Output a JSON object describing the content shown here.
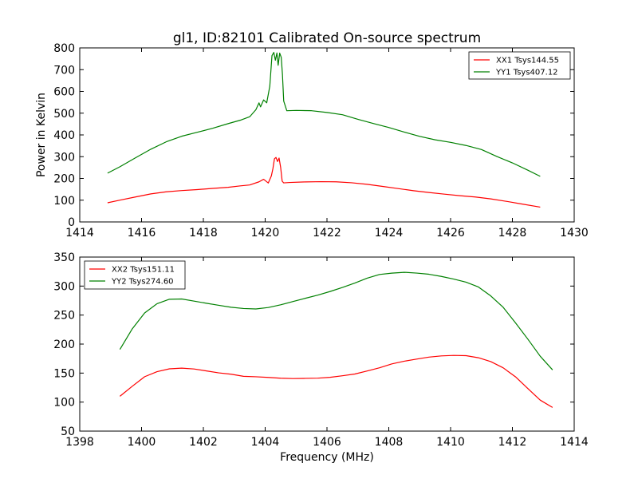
{
  "chart_data": [
    {
      "type": "line",
      "title": "gl1, ID:82101 Calibrated On-source spectrum",
      "xlabel": "",
      "ylabel": "Power in Kelvin",
      "xlim": [
        1414,
        1430
      ],
      "ylim": [
        0,
        800
      ],
      "xticks": [
        1414,
        1416,
        1418,
        1420,
        1422,
        1424,
        1426,
        1428,
        1430
      ],
      "yticks": [
        0,
        100,
        200,
        300,
        400,
        500,
        600,
        700,
        800
      ],
      "grid": false,
      "legend": "top-right",
      "series": [
        {
          "name": "XX1 Tsys144.55",
          "color": "#ff0000",
          "x": [
            1414.9,
            1415.3,
            1415.8,
            1416.3,
            1416.8,
            1417.3,
            1417.8,
            1418.3,
            1418.8,
            1419.2,
            1419.5,
            1419.8,
            1419.95,
            1420.1,
            1420.2,
            1420.25,
            1420.3,
            1420.35,
            1420.4,
            1420.45,
            1420.5,
            1420.55,
            1420.6,
            1420.8,
            1421.3,
            1421.8,
            1422.3,
            1422.8,
            1423.3,
            1423.8,
            1424.3,
            1424.8,
            1425.3,
            1425.8,
            1426.3,
            1426.8,
            1427.3,
            1427.8,
            1428.3,
            1428.9
          ],
          "y": [
            88,
            102,
            118,
            133,
            143,
            148,
            151,
            155,
            158,
            163,
            166,
            180,
            192,
            176,
            210,
            245,
            292,
            300,
            282,
            298,
            255,
            190,
            180,
            180,
            181,
            181,
            180,
            176,
            170,
            162,
            154,
            146,
            139,
            132,
            125,
            118,
            108,
            95,
            81,
            65
          ]
        },
        {
          "name": "YY1 Tsys407.12",
          "color": "#008000",
          "x": [
            1414.9,
            1415.3,
            1415.8,
            1416.3,
            1416.8,
            1417.3,
            1417.8,
            1418.3,
            1418.8,
            1419.2,
            1419.5,
            1419.7,
            1419.8,
            1419.85,
            1419.95,
            1420.05,
            1420.15,
            1420.22,
            1420.28,
            1420.33,
            1420.38,
            1420.42,
            1420.47,
            1420.52,
            1420.56,
            1420.6,
            1420.7,
            1421.0,
            1421.5,
            1422.0,
            1422.5,
            1423.0,
            1423.5,
            1424.0,
            1424.5,
            1425.0,
            1425.5,
            1426.0,
            1426.5,
            1427.0,
            1427.5,
            1428.0,
            1428.5,
            1428.9
          ],
          "y": [
            222,
            250,
            290,
            330,
            365,
            392,
            412,
            432,
            455,
            472,
            488,
            520,
            550,
            530,
            560,
            545,
            620,
            760,
            775,
            740,
            775,
            720,
            778,
            760,
            680,
            560,
            515,
            515,
            512,
            502,
            490,
            468,
            448,
            430,
            410,
            392,
            378,
            368,
            355,
            337,
            305,
            275,
            240,
            210
          ]
        }
      ]
    },
    {
      "type": "line",
      "title": "",
      "xlabel": "Frequency (MHz)",
      "ylabel": "",
      "xlim": [
        1398,
        1414
      ],
      "ylim": [
        50,
        350
      ],
      "xticks": [
        1398,
        1400,
        1402,
        1404,
        1406,
        1408,
        1410,
        1412,
        1414
      ],
      "yticks": [
        50,
        100,
        150,
        200,
        250,
        300,
        350
      ],
      "grid": false,
      "legend": "top-left",
      "series": [
        {
          "name": "XX2 Tsys151.11",
          "color": "#ff0000",
          "x": [
            1399.3,
            1399.7,
            1400.1,
            1400.5,
            1400.9,
            1401.3,
            1401.7,
            1402.1,
            1402.5,
            1402.9,
            1403.3,
            1403.7,
            1404.1,
            1404.5,
            1404.9,
            1405.3,
            1405.7,
            1406.1,
            1406.5,
            1406.9,
            1407.3,
            1407.7,
            1408.1,
            1408.5,
            1408.9,
            1409.3,
            1409.7,
            1410.1,
            1410.5,
            1410.9,
            1411.3,
            1411.7,
            1412.1,
            1412.5,
            1412.9,
            1413.3
          ],
          "y": [
            110,
            128,
            145,
            154,
            159,
            160,
            158,
            154,
            150,
            147,
            143,
            142,
            141,
            140,
            140,
            141,
            142,
            144,
            147,
            150,
            155,
            160,
            166,
            170,
            173,
            176,
            178,
            179,
            179,
            176,
            170,
            160,
            145,
            125,
            105,
            92
          ]
        },
        {
          "name": "YY2 Tsys274.60",
          "color": "#008000",
          "x": [
            1399.3,
            1399.7,
            1400.1,
            1400.5,
            1400.9,
            1401.3,
            1401.7,
            1402.1,
            1402.5,
            1402.9,
            1403.3,
            1403.7,
            1404.1,
            1404.5,
            1404.9,
            1405.3,
            1405.7,
            1406.1,
            1406.5,
            1406.9,
            1407.3,
            1407.7,
            1408.1,
            1408.5,
            1408.9,
            1409.3,
            1409.7,
            1410.1,
            1410.5,
            1410.9,
            1411.3,
            1411.7,
            1412.1,
            1412.5,
            1412.9,
            1413.3
          ],
          "y": [
            190,
            225,
            252,
            268,
            276,
            277,
            274,
            271,
            268,
            265,
            263,
            262,
            264,
            268,
            273,
            278,
            283,
            289,
            296,
            304,
            313,
            320,
            323,
            325,
            324,
            322,
            318,
            313,
            307,
            298,
            282,
            262,
            235,
            207,
            178,
            155
          ]
        }
      ]
    }
  ]
}
